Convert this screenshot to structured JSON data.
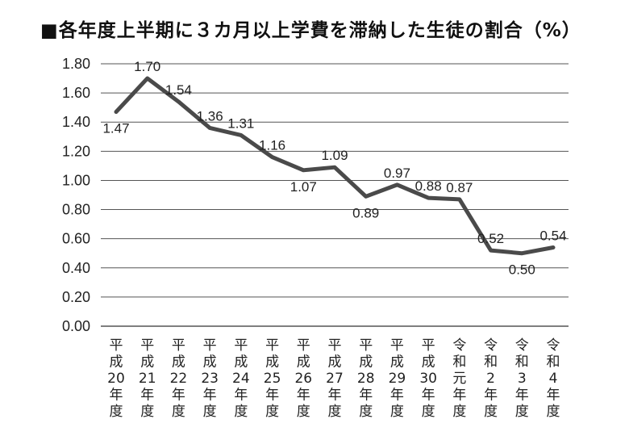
{
  "chart_data": {
    "type": "line",
    "title": "■各年度上半期に３カ月以上学費を滞納した生徒の割合（%）",
    "categories": [
      "平成20年度",
      "平成21年度",
      "平成22年度",
      "平成23年度",
      "平成24年度",
      "平成25年度",
      "平成26年度",
      "平成27年度",
      "平成28年度",
      "平成29年度",
      "平成30年度",
      "令和元年度",
      "令和2年度",
      "令和3年度",
      "令和4年度"
    ],
    "values": [
      1.47,
      1.7,
      1.54,
      1.36,
      1.31,
      1.16,
      1.07,
      1.09,
      0.89,
      0.97,
      0.88,
      0.87,
      0.52,
      0.5,
      0.54
    ],
    "value_labels": [
      "1.47",
      "1.70",
      "1.54",
      "1.36",
      "1.31",
      "1.16",
      "1.07",
      "1.09",
      "0.89",
      "0.97",
      "0.88",
      "0.87",
      "0.52",
      "0.50",
      "0.54"
    ],
    "y_ticks": [
      "0.00",
      "0.20",
      "0.40",
      "0.60",
      "0.80",
      "1.00",
      "1.20",
      "1.40",
      "1.60",
      "1.80"
    ],
    "ylim": [
      0,
      1.8
    ],
    "grid": true,
    "line_color": "#4a4a4a",
    "grid_color": "#555555"
  }
}
